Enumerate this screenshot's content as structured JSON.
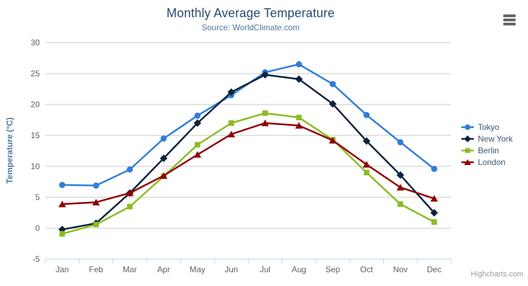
{
  "chart_data": {
    "type": "line",
    "title": "Monthly Average Temperature",
    "subtitle": "Source: WorldClimate.com",
    "xlabel": "",
    "ylabel": "Temperature (°C)",
    "categories": [
      "Jan",
      "Feb",
      "Mar",
      "Apr",
      "May",
      "Jun",
      "Jul",
      "Aug",
      "Sep",
      "Oct",
      "Nov",
      "Dec"
    ],
    "ylim": [
      -5,
      30
    ],
    "yticks": [
      -5,
      0,
      5,
      10,
      15,
      20,
      25,
      30
    ],
    "grid": true,
    "legend_position": "right",
    "series": [
      {
        "name": "Tokyo",
        "color": "#2f7ed8",
        "marker": "circle",
        "values": [
          7.0,
          6.9,
          9.5,
          14.5,
          18.2,
          21.5,
          25.2,
          26.5,
          23.3,
          18.3,
          13.9,
          9.6
        ]
      },
      {
        "name": "New York",
        "color": "#0d233a",
        "marker": "diamond",
        "values": [
          -0.2,
          0.8,
          5.7,
          11.3,
          17.0,
          22.0,
          24.8,
          24.1,
          20.1,
          14.1,
          8.6,
          2.5
        ]
      },
      {
        "name": "Berlin",
        "color": "#8bbc21",
        "marker": "square",
        "values": [
          -0.9,
          0.6,
          3.5,
          8.4,
          13.5,
          17.0,
          18.6,
          17.9,
          14.3,
          9.0,
          3.9,
          1.0
        ]
      },
      {
        "name": "London",
        "color": "#910000",
        "marker": "triangle",
        "values": [
          3.9,
          4.2,
          5.7,
          8.5,
          11.9,
          15.2,
          17.0,
          16.6,
          14.2,
          10.3,
          6.6,
          4.8
        ]
      }
    ]
  },
  "styles": {
    "title_color": "#274b6d",
    "subtitle_color": "#4d759e",
    "axis_label_color": "#606060",
    "axis_line_color": "#c0d0e0",
    "gridline_color": "#c8c8c8",
    "legend_text_color": "#3e576f"
  },
  "credit": {
    "label": "Highcharts.com"
  },
  "icons": {
    "context_menu": "hamburger-icon"
  }
}
